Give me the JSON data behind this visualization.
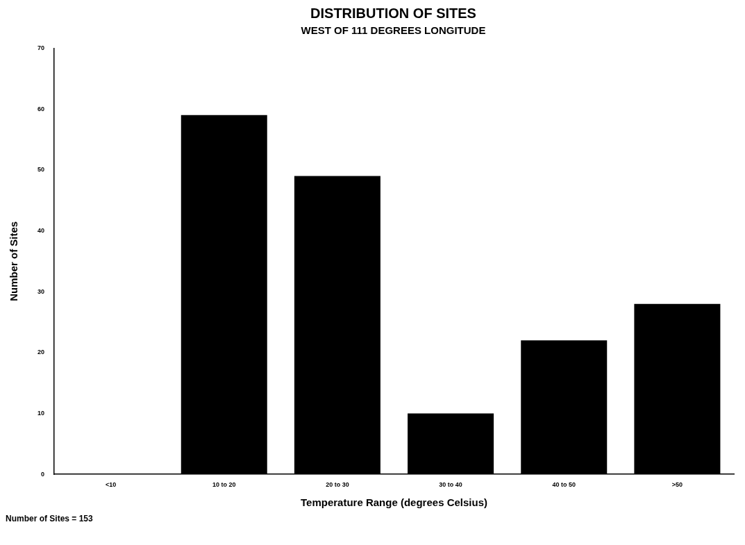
{
  "chart_data": {
    "type": "bar",
    "title": "DISTRIBUTION OF SITES",
    "subtitle": "WEST OF 111 DEGREES LONGITUDE",
    "xlabel": "Temperature Range (degrees Celsius)",
    "ylabel": "Number of Sites",
    "categories": [
      "<10",
      "10 to 20",
      "20 to 30",
      "30 to 40",
      "40 to 50",
      ">50"
    ],
    "values": [
      0,
      59,
      49,
      10,
      22,
      28
    ],
    "color": "#000000",
    "ylim": [
      0,
      70
    ],
    "yticks": [
      0,
      10,
      20,
      30,
      40,
      50,
      60,
      70
    ],
    "grid": false,
    "legend": false,
    "annotations": [
      "Number of Sites = 153"
    ]
  }
}
